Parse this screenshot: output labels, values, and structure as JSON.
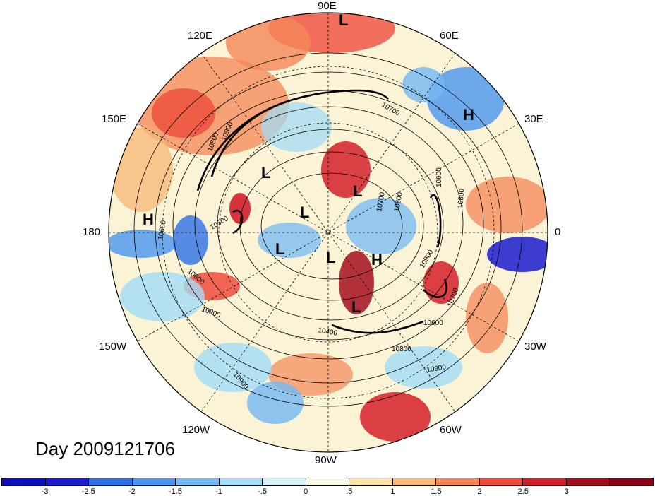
{
  "lon_labels": {
    "deg90e": "90E",
    "deg120e": "120E",
    "deg60e": "60E",
    "deg150e": "150E",
    "deg30e": "30E",
    "deg180": "180",
    "deg0": "0",
    "deg150w": "150W",
    "deg30w": "30W",
    "deg120w": "120W",
    "deg60w": "60W",
    "deg90w": "90W"
  },
  "title": "Day 2009121706",
  "contour_labels": [
    "10800",
    "10700",
    "10600",
    "10500",
    "10400",
    "10900",
    "10700",
    "10800",
    "10900",
    "10800",
    "10600",
    "10600",
    "10800",
    "10900",
    "10700",
    "10800",
    "10900",
    "10600"
  ],
  "pressure_centers": [
    "L",
    "L",
    "L",
    "L",
    "L",
    "L",
    "L",
    "H",
    "H",
    "H"
  ],
  "colorbar": {
    "ticks": [
      "-3",
      "-2.5",
      "-2",
      "-1.5",
      "-1",
      "-.5",
      "0",
      ".5",
      "1",
      "1.5",
      "2",
      "2.5",
      "3"
    ],
    "colors": [
      "#1b1bd0",
      "#2d6fe6",
      "#4a95f0",
      "#74b8f4",
      "#a3dcf6",
      "#d7f2fa",
      "#fbfbe2",
      "#fbe4a6",
      "#f8b97a",
      "#f48756",
      "#ed4c3c",
      "#d21f29",
      "#a50d1d"
    ]
  }
}
